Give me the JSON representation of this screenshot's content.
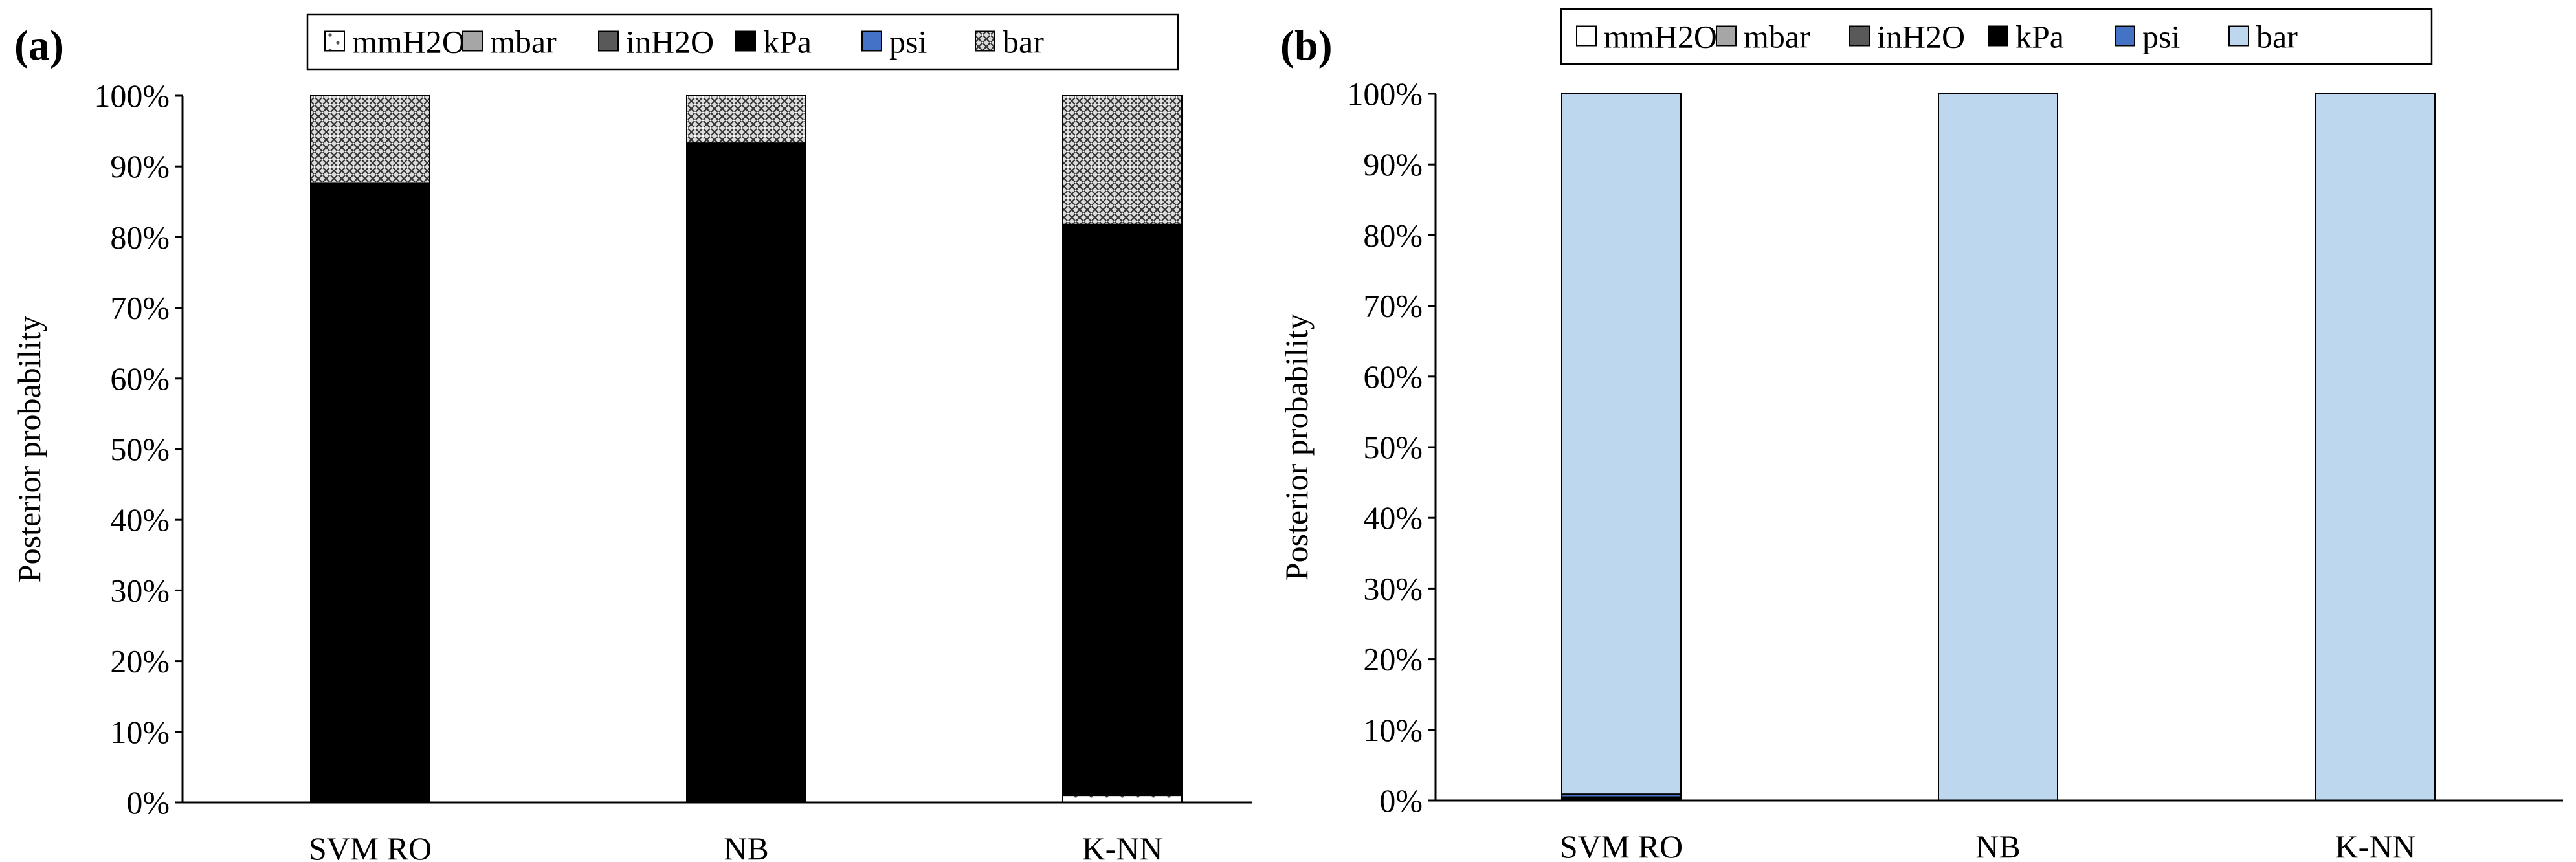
{
  "chart_data": [
    {
      "type": "bar",
      "stacked": true,
      "panel_label": "(a)",
      "categories": [
        "SVM RO",
        "NB",
        "K-NN"
      ],
      "ylabel": "Posterior probability",
      "ylim": [
        0,
        100
      ],
      "yticks": [
        "0%",
        "10%",
        "20%",
        "30%",
        "40%",
        "50%",
        "60%",
        "70%",
        "80%",
        "90%",
        "100%"
      ],
      "legend_position": "top",
      "grid": false,
      "series": [
        {
          "name": "mmH2O",
          "values": [
            0.2,
            0.2,
            1.0
          ],
          "fill": "dots"
        },
        {
          "name": "mbar",
          "values": [
            0.1,
            0.1,
            0.2
          ],
          "fill": "#a6a6a6"
        },
        {
          "name": "inH2O",
          "values": [
            0.1,
            0.1,
            0.1
          ],
          "fill": "#595959"
        },
        {
          "name": "kPa",
          "values": [
            87.1,
            92.8,
            80.4
          ],
          "fill": "#000000"
        },
        {
          "name": "psi",
          "values": [
            0.1,
            0.1,
            0.1
          ],
          "fill": "#4472c4"
        },
        {
          "name": "bar",
          "values": [
            12.4,
            6.7,
            18.2
          ],
          "fill": "crosshatch"
        }
      ]
    },
    {
      "type": "bar",
      "stacked": true,
      "panel_label": "(b)",
      "categories": [
        "SVM RO",
        "NB",
        "K-NN"
      ],
      "ylabel": "Posterior probability",
      "ylim": [
        0,
        100
      ],
      "yticks": [
        "0%",
        "10%",
        "20%",
        "30%",
        "40%",
        "50%",
        "60%",
        "70%",
        "80%",
        "90%",
        "100%"
      ],
      "legend_position": "top",
      "grid": false,
      "series": [
        {
          "name": "mmH2O",
          "values": [
            0.2,
            0.0,
            0.0
          ],
          "fill": "#ffffff"
        },
        {
          "name": "mbar",
          "values": [
            0.1,
            0.0,
            0.0
          ],
          "fill": "#a6a6a6"
        },
        {
          "name": "inH2O",
          "values": [
            0.1,
            0.0,
            0.0
          ],
          "fill": "#595959"
        },
        {
          "name": "kPa",
          "values": [
            0.1,
            0.0,
            0.0
          ],
          "fill": "#000000"
        },
        {
          "name": "psi",
          "values": [
            0.4,
            0.0,
            0.0
          ],
          "fill": "#4472c4"
        },
        {
          "name": "bar",
          "values": [
            99.1,
            100.0,
            100.0
          ],
          "fill": "#bdd7ee"
        }
      ]
    }
  ]
}
